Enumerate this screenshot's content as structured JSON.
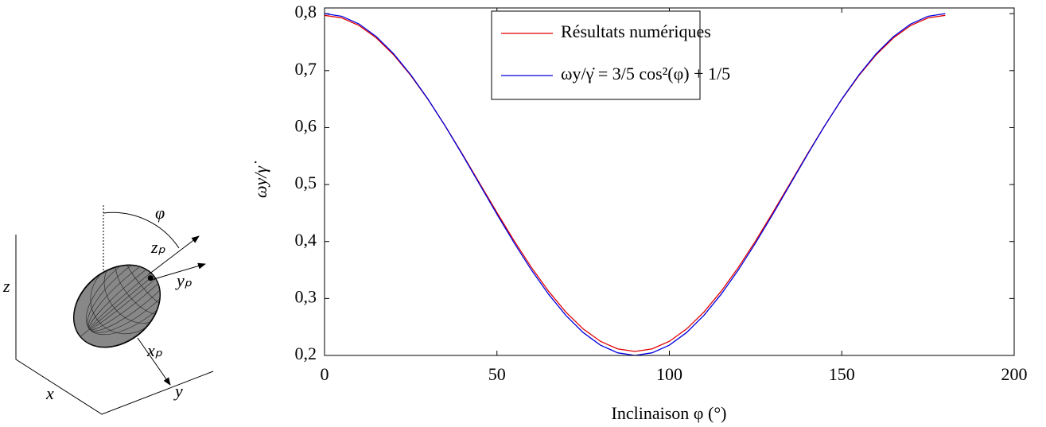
{
  "chart_data": {
    "type": "line",
    "xlabel": "Inclinaison φ (°)",
    "ylabel": "ωy/γ̇",
    "x": [
      0,
      5,
      10,
      15,
      20,
      25,
      30,
      35,
      40,
      45,
      50,
      55,
      60,
      65,
      70,
      75,
      80,
      85,
      90,
      95,
      100,
      105,
      110,
      115,
      120,
      125,
      130,
      135,
      140,
      145,
      150,
      155,
      160,
      165,
      170,
      175,
      180
    ],
    "series": [
      {
        "name": "Résultats numériques",
        "color": "#e00000",
        "values": [
          0.797,
          0.7925,
          0.7792,
          0.7575,
          0.728,
          0.6916,
          0.6495,
          0.6029,
          0.5532,
          0.502,
          0.4508,
          0.4011,
          0.3545,
          0.3124,
          0.276,
          0.2465,
          0.2248,
          0.2115,
          0.207,
          0.2115,
          0.2248,
          0.2465,
          0.276,
          0.3124,
          0.3545,
          0.4011,
          0.4508,
          0.502,
          0.5532,
          0.6029,
          0.6495,
          0.6916,
          0.728,
          0.7575,
          0.7792,
          0.7925,
          0.797
        ]
      },
      {
        "name": "ωy/γ̇ = 3/5 cos²(φ) + 1/5",
        "color": "#0000e0",
        "values": [
          0.8,
          0.7954,
          0.7819,
          0.7598,
          0.7298,
          0.6928,
          0.65,
          0.6026,
          0.5521,
          0.5,
          0.4479,
          0.3974,
          0.35,
          0.3072,
          0.2702,
          0.2402,
          0.2181,
          0.2046,
          0.2,
          0.2046,
          0.2181,
          0.2402,
          0.2702,
          0.3072,
          0.35,
          0.3974,
          0.4479,
          0.5,
          0.5521,
          0.6026,
          0.65,
          0.6928,
          0.7298,
          0.7598,
          0.7819,
          0.7954,
          0.8
        ]
      }
    ],
    "xlim": [
      0,
      200
    ],
    "xticks": [
      0,
      50,
      100,
      150,
      200
    ],
    "ylim": [
      0.2,
      0.81
    ],
    "yticks": [
      {
        "value": 0.2,
        "label": "0,2"
      },
      {
        "value": 0.3,
        "label": "0,3"
      },
      {
        "value": 0.4,
        "label": "0,4"
      },
      {
        "value": 0.5,
        "label": "0,5"
      },
      {
        "value": 0.6,
        "label": "0,6"
      },
      {
        "value": 0.7,
        "label": "0,7"
      },
      {
        "value": 0.8,
        "label": "0,8"
      }
    ],
    "grid": false,
    "legend": "upper center"
  },
  "diagram": {
    "angle": "φ",
    "zp": "zₚ",
    "yp": "yₚ",
    "xp": "xₚ",
    "z": "z",
    "x": "x",
    "y": "y"
  }
}
